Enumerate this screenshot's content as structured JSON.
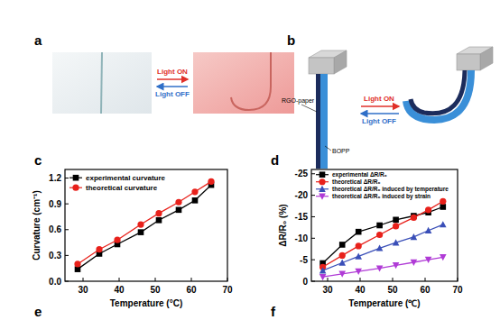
{
  "figure": {
    "panel_labels": [
      "a",
      "b",
      "c",
      "d",
      "e",
      "f"
    ],
    "panel_a": {
      "light_on": "Light ON",
      "light_off": "Light OFF"
    },
    "panel_b": {
      "light_on": "Light ON",
      "light_off": "Light OFF",
      "layer_top": "RGO-paper",
      "layer_bottom": "BOPP"
    }
  },
  "chart_data": [
    {
      "type": "line",
      "x_label": "Temperature (°C)",
      "y_label": "Curvature (cm⁻¹)",
      "x": [
        28.5,
        34.5,
        39.5,
        46,
        51,
        56.5,
        61,
        65.5
      ],
      "series": [
        {
          "name": "experimental curvature",
          "color": "#000000",
          "marker": "square",
          "line_style": "solid",
          "values": [
            0.14,
            0.32,
            0.43,
            0.57,
            0.71,
            0.83,
            0.94,
            1.12
          ]
        },
        {
          "name": "theoretical curvature",
          "color": "#e8211b",
          "marker": "circle",
          "line_style": "solid",
          "values": [
            0.2,
            0.37,
            0.48,
            0.66,
            0.79,
            0.92,
            1.04,
            1.16
          ]
        }
      ],
      "xlim": [
        25,
        70
      ],
      "xticks": [
        30,
        40,
        50,
        60,
        70
      ],
      "ylim": [
        0,
        1.3
      ],
      "yticks": [
        {
          "value": 0,
          "label": "0.0"
        },
        0.3,
        0.6,
        0.9,
        1.2
      ],
      "grid": false,
      "legend": "upper left"
    },
    {
      "type": "line",
      "x_label": "Temperature (℃)",
      "y_label": "ΔR/R₀ (%)",
      "x": [
        28.5,
        34.5,
        39.5,
        46,
        51,
        56.5,
        61,
        65.5
      ],
      "series": [
        {
          "name": "experimental ΔR/R₀",
          "color": "#000000",
          "marker": "square",
          "line_style": "solid",
          "values": [
            -4.2,
            -8.5,
            -11.5,
            -13,
            -14.3,
            -15.2,
            -16,
            -17.3
          ]
        },
        {
          "name": "theoretical ΔR/R₀",
          "color": "#e8211b",
          "marker": "circle",
          "line_style": "solid",
          "values": [
            -3.3,
            -6,
            -8.2,
            -10.8,
            -12.8,
            -14.8,
            -16.6,
            -18.6
          ]
        },
        {
          "name": "theoretical ΔR/R₀ induced by temperature",
          "color": "#3a4fb8",
          "marker": "triangle",
          "line_style": "solid",
          "values": [
            -2.5,
            -4.3,
            -5.8,
            -7.7,
            -9,
            -10.3,
            -11.8,
            -13.2
          ]
        },
        {
          "name": "theoretical ΔR/R₀ induced by strain",
          "color": "#b03bd6",
          "marker": "triangle-down",
          "line_style": "solid",
          "values": [
            -1,
            -1.7,
            -2.3,
            -3,
            -3.7,
            -4.4,
            -5,
            -5.6
          ]
        }
      ],
      "xlim": [
        25,
        70
      ],
      "xticks": [
        30,
        40,
        50,
        60,
        70
      ],
      "ylim": [
        0,
        -26
      ],
      "yticks": [
        -25,
        -20,
        -15,
        -10,
        -5,
        0
      ],
      "grid": false,
      "legend": "upper left"
    }
  ]
}
